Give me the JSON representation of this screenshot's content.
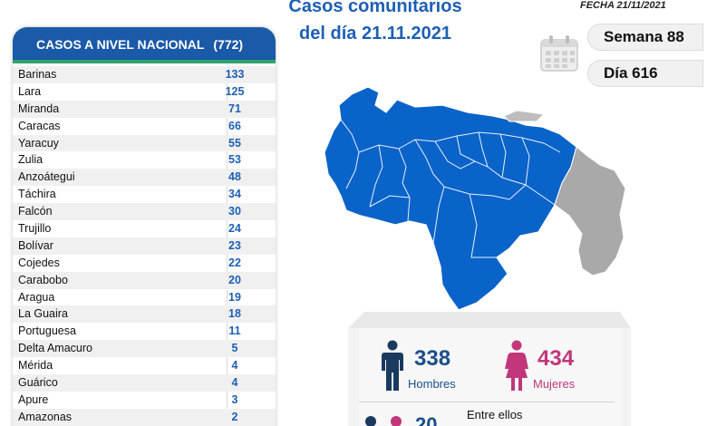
{
  "header": {
    "title_line1": "Casos comunitarios",
    "title_line2": "del día 21.11.2021",
    "fecha": "FECHA 21/11/2021",
    "semana": "Semana 88",
    "dia": "Día 616"
  },
  "panel": {
    "title": "CASOS A NIVEL NACIONAL",
    "total": "(772)",
    "rows": [
      {
        "state": "Barinas",
        "cases": "133"
      },
      {
        "state": "Lara",
        "cases": "125"
      },
      {
        "state": "Miranda",
        "cases": "71"
      },
      {
        "state": "Caracas",
        "cases": "66"
      },
      {
        "state": "Yaracuy",
        "cases": "55"
      },
      {
        "state": "Zulia",
        "cases": "53"
      },
      {
        "state": "Anzoátegui",
        "cases": "48"
      },
      {
        "state": "Táchira",
        "cases": "34"
      },
      {
        "state": "Falcón",
        "cases": "30"
      },
      {
        "state": "Trujillo",
        "cases": "24"
      },
      {
        "state": "Bolívar",
        "cases": "23"
      },
      {
        "state": "Cojedes",
        "cases": "22"
      },
      {
        "state": "Carabobo",
        "cases": "20"
      },
      {
        "state": "Aragua",
        "cases": "19"
      },
      {
        "state": "La Guaira",
        "cases": "18"
      },
      {
        "state": "Portuguesa",
        "cases": "11"
      },
      {
        "state": "Delta Amacuro",
        "cases": "5"
      },
      {
        "state": "Mérida",
        "cases": "4"
      },
      {
        "state": "Guárico",
        "cases": "4"
      },
      {
        "state": "Apure",
        "cases": "3"
      },
      {
        "state": "Amazonas",
        "cases": "2"
      }
    ]
  },
  "stats": {
    "men_count": "338",
    "men_label": "Hombres",
    "women_count": "434",
    "women_label": "Mujeres",
    "entre_ellos": "Entre ellos",
    "partial_number": "20"
  },
  "icons": {
    "calendar": "calendar-icon",
    "man": "man-icon",
    "woman": "woman-icon",
    "map": "venezuela-map"
  },
  "colors": {
    "accent_blue": "#1a5aa8",
    "map_blue": "#0a63c9",
    "territory_grey": "#a9a9a9",
    "men": "#1a4e8c",
    "women": "#c2367b",
    "header_underline": "#2fa36b"
  }
}
